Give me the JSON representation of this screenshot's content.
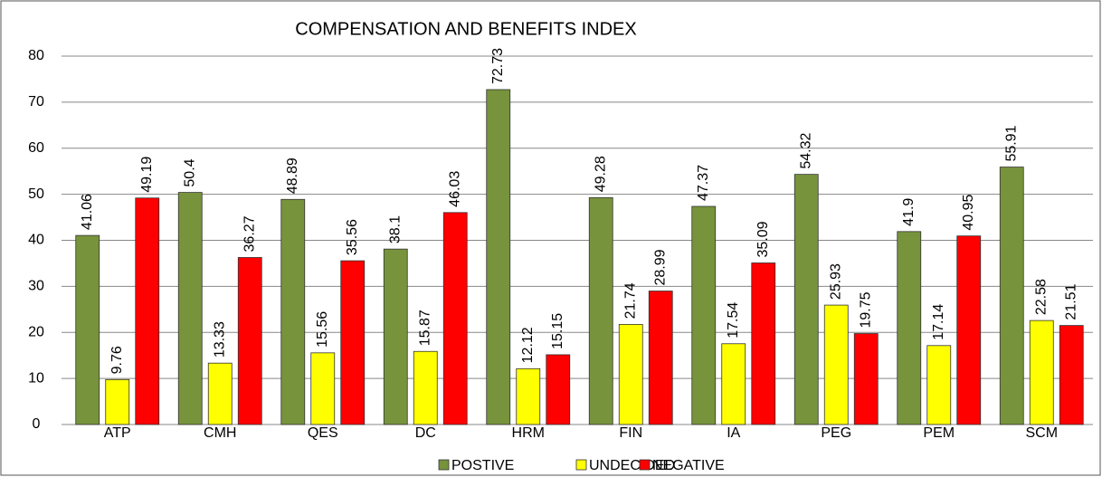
{
  "chart_data": {
    "type": "bar",
    "title": "COMPENSATION  AND  BENEFITS  INDEX",
    "categories": [
      "ATP",
      "CMH",
      "QES",
      "DC",
      "HRM",
      "FIN",
      "IA",
      "PEG",
      "PEM",
      "SCM"
    ],
    "series": [
      {
        "name": "POSTIVE",
        "color": "#77933c",
        "values": [
          41.06,
          50.4,
          48.89,
          38.1,
          72.73,
          49.28,
          47.37,
          54.32,
          41.9,
          55.91
        ]
      },
      {
        "name": "UNDECIDED",
        "color": "#ffff00",
        "values": [
          9.76,
          13.33,
          15.56,
          15.87,
          12.12,
          21.74,
          17.54,
          25.93,
          17.14,
          22.58
        ]
      },
      {
        "name": "NEGATIVE",
        "color": "#ff0000",
        "values": [
          49.19,
          36.27,
          35.56,
          46.03,
          15.15,
          28.99,
          35.09,
          19.75,
          40.95,
          21.51
        ]
      }
    ],
    "ylim": [
      0,
      80
    ],
    "yticks": [
      0,
      10,
      20,
      30,
      40,
      50,
      60,
      70,
      80
    ],
    "grid": true,
    "legend": "bottom"
  }
}
